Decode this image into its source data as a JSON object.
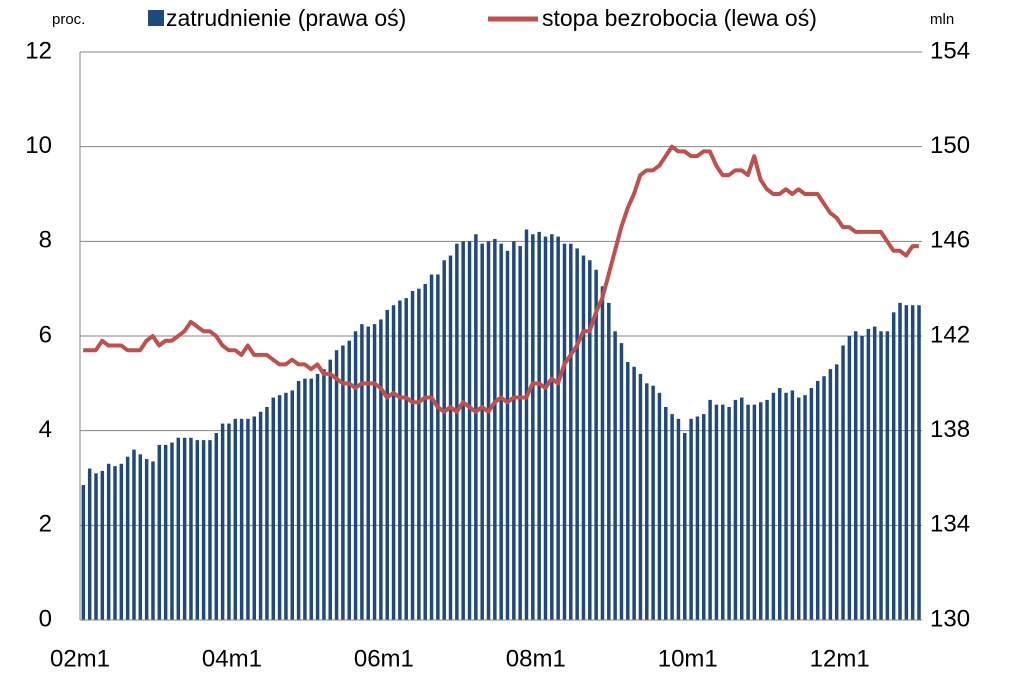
{
  "chart_data": {
    "type": "combo",
    "y_label": "proc.",
    "y2_label": "mln",
    "categories": [
      "02m1",
      null,
      null,
      null,
      null,
      null,
      null,
      null,
      null,
      null,
      null,
      null,
      null,
      null,
      null,
      null,
      null,
      null,
      null,
      null,
      null,
      null,
      null,
      null,
      "04m1",
      null,
      null,
      null,
      null,
      null,
      null,
      null,
      null,
      null,
      null,
      null,
      null,
      null,
      null,
      null,
      null,
      null,
      null,
      null,
      null,
      null,
      null,
      null,
      "06m1",
      null,
      null,
      null,
      null,
      null,
      null,
      null,
      null,
      null,
      null,
      null,
      null,
      null,
      null,
      null,
      null,
      null,
      null,
      null,
      null,
      null,
      null,
      null,
      "08m1",
      null,
      null,
      null,
      null,
      null,
      null,
      null,
      null,
      null,
      null,
      null,
      null,
      null,
      null,
      null,
      null,
      null,
      null,
      null,
      null,
      null,
      null,
      null,
      "10m1",
      null,
      null,
      null,
      null,
      null,
      null,
      null,
      null,
      null,
      null,
      null,
      null,
      null,
      null,
      null,
      null,
      null,
      null,
      null,
      null,
      null,
      null,
      null,
      "12m1",
      null,
      null,
      null,
      null,
      null,
      null,
      null,
      null,
      null,
      null,
      null,
      null
    ],
    "series": [
      {
        "name": "zatrudnienie (prawa oś)",
        "type": "bar",
        "axis": "y2",
        "color": "#1F497D",
        "values": [
          135.7,
          136.4,
          136.2,
          136.3,
          136.6,
          136.5,
          136.6,
          136.9,
          137.2,
          137.0,
          136.8,
          136.7,
          137.4,
          137.4,
          137.5,
          137.7,
          137.7,
          137.7,
          137.6,
          137.6,
          137.6,
          137.9,
          138.3,
          138.3,
          138.5,
          138.5,
          138.5,
          138.6,
          138.8,
          139.0,
          139.4,
          139.5,
          139.6,
          139.7,
          140.1,
          140.2,
          140.2,
          140.4,
          140.6,
          141.0,
          141.4,
          141.6,
          141.8,
          142.2,
          142.5,
          142.4,
          142.5,
          142.7,
          143.1,
          143.3,
          143.5,
          143.6,
          143.9,
          144.0,
          144.2,
          144.6,
          144.6,
          145.2,
          145.4,
          145.9,
          146.0,
          146.0,
          146.3,
          145.9,
          146.0,
          146.1,
          145.9,
          145.6,
          146.0,
          145.8,
          146.5,
          146.3,
          146.4,
          146.2,
          146.3,
          146.2,
          145.9,
          145.9,
          145.7,
          145.4,
          145.2,
          144.8,
          144.1,
          143.4,
          142.2,
          141.7,
          140.9,
          140.7,
          140.4,
          140.0,
          139.9,
          139.6,
          139.0,
          138.7,
          138.5,
          137.9,
          138.5,
          138.6,
          138.7,
          139.3,
          139.1,
          139.1,
          139.0,
          139.3,
          139.4,
          139.1,
          139.1,
          139.2,
          139.3,
          139.6,
          139.8,
          139.6,
          139.7,
          139.4,
          139.5,
          139.8,
          140.1,
          140.3,
          140.6,
          140.8,
          141.6,
          142.0,
          142.2,
          142.0,
          142.3,
          142.4,
          142.2,
          142.2,
          143.0,
          143.4,
          143.3,
          143.3,
          143.3
        ]
      },
      {
        "name": "stopa bezrobocia (lewa oś)",
        "type": "line",
        "axis": "y",
        "color": "#C0504D",
        "values": [
          5.7,
          5.7,
          5.7,
          5.9,
          5.8,
          5.8,
          5.8,
          5.7,
          5.7,
          5.7,
          5.9,
          6.0,
          5.8,
          5.9,
          5.9,
          6.0,
          6.1,
          6.3,
          6.2,
          6.1,
          6.1,
          6.0,
          5.8,
          5.7,
          5.7,
          5.6,
          5.8,
          5.6,
          5.6,
          5.6,
          5.5,
          5.4,
          5.4,
          5.5,
          5.4,
          5.4,
          5.3,
          5.4,
          5.2,
          5.2,
          5.1,
          5.0,
          5.0,
          4.9,
          5.0,
          5.0,
          5.0,
          4.9,
          4.7,
          4.8,
          4.7,
          4.7,
          4.6,
          4.6,
          4.7,
          4.7,
          4.5,
          4.4,
          4.5,
          4.4,
          4.6,
          4.5,
          4.4,
          4.5,
          4.4,
          4.6,
          4.7,
          4.6,
          4.7,
          4.7,
          4.7,
          5.0,
          5.0,
          4.9,
          5.1,
          5.0,
          5.4,
          5.6,
          5.8,
          6.1,
          6.1,
          6.5,
          6.8,
          7.3,
          7.8,
          8.3,
          8.7,
          9.0,
          9.4,
          9.5,
          9.5,
          9.6,
          9.8,
          10.0,
          9.9,
          9.9,
          9.8,
          9.8,
          9.9,
          9.9,
          9.6,
          9.4,
          9.4,
          9.5,
          9.5,
          9.4,
          9.8,
          9.3,
          9.1,
          9.0,
          9.0,
          9.1,
          9.0,
          9.1,
          9.0,
          9.0,
          9.0,
          8.8,
          8.6,
          8.5,
          8.3,
          8.3,
          8.2,
          8.2,
          8.2,
          8.2,
          8.2,
          8.0,
          7.8,
          7.8,
          7.7,
          7.9,
          7.9
        ]
      }
    ],
    "ylim": [
      0,
      12
    ],
    "yticks": [
      0,
      2,
      4,
      6,
      8,
      10,
      12
    ],
    "y2lim": [
      130,
      154
    ],
    "y2ticks": [
      130,
      134,
      138,
      142,
      146,
      150,
      154
    ],
    "grid": true
  }
}
